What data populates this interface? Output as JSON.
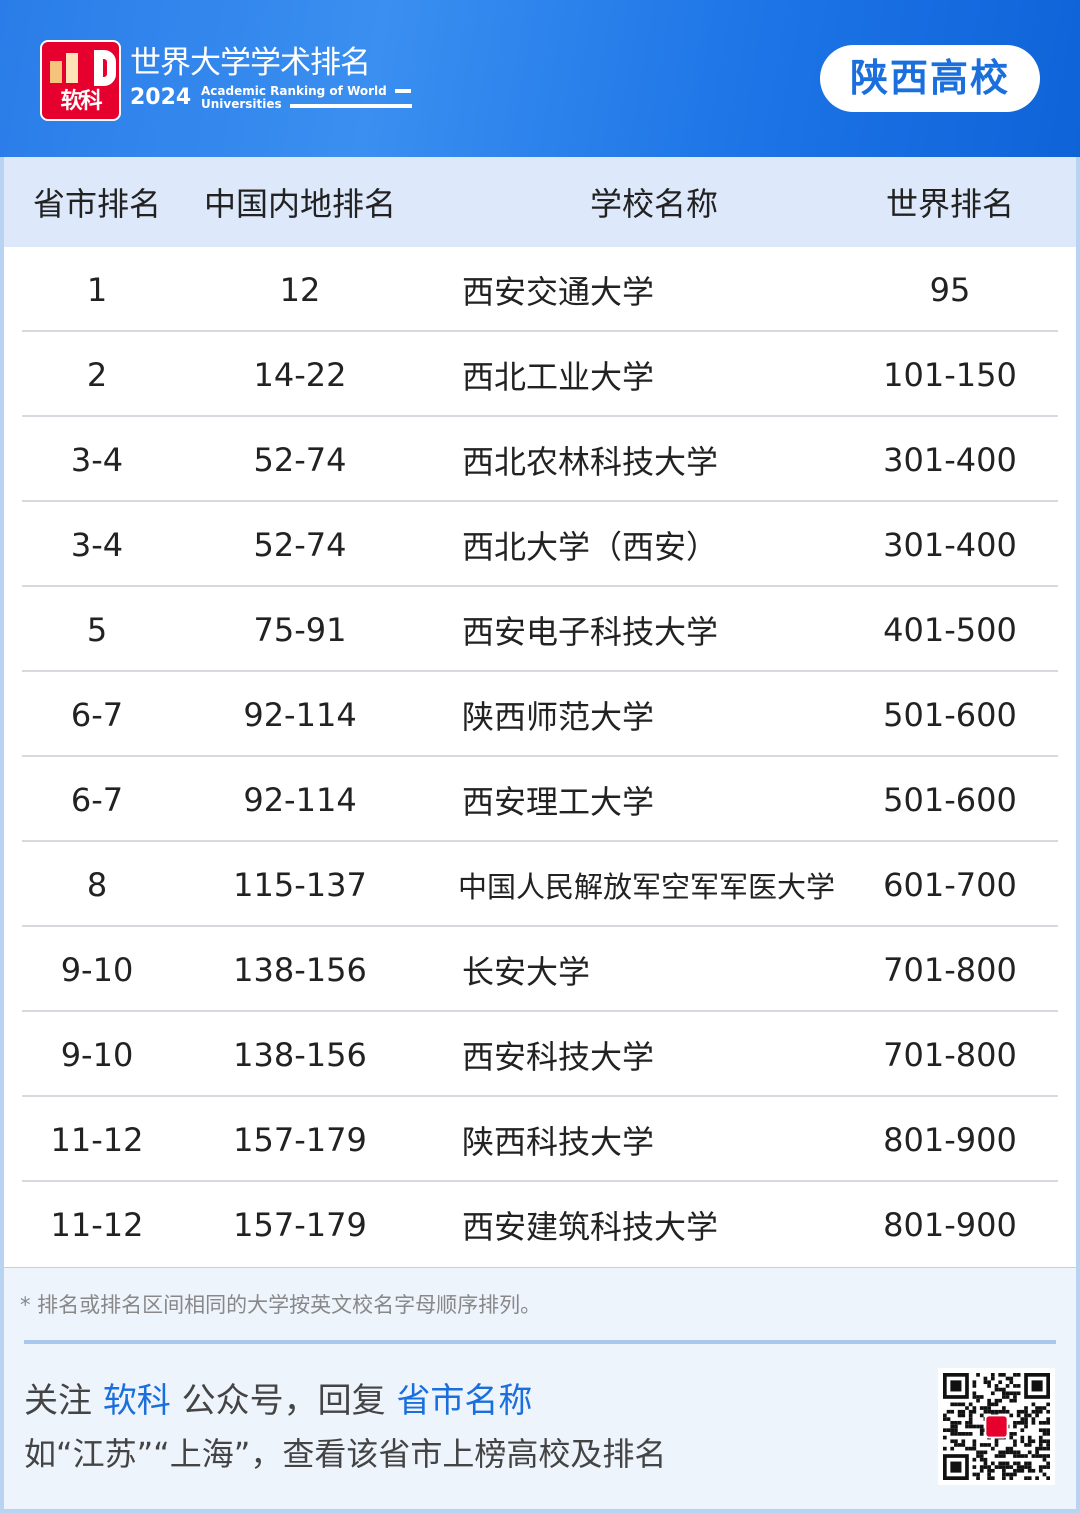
{
  "header": {
    "logo_text": "软科",
    "title": "世界大学学术排名",
    "year": "2024",
    "subtitle_line1": "Academic Ranking of World",
    "subtitle_line2": "Universities",
    "province_badge": "陕西高校"
  },
  "table": {
    "columns": [
      "省市排名",
      "中国内地排名",
      "学校名称",
      "世界排名"
    ],
    "rows": [
      [
        "1",
        "12",
        "西安交通大学",
        "95"
      ],
      [
        "2",
        "14-22",
        "西北工业大学",
        "101-150"
      ],
      [
        "3-4",
        "52-74",
        "西北农林科技大学",
        "301-400"
      ],
      [
        "3-4",
        "52-74",
        "西北大学（西安）",
        "301-400"
      ],
      [
        "5",
        "75-91",
        "西安电子科技大学",
        "401-500"
      ],
      [
        "6-7",
        "92-114",
        "陕西师范大学",
        "501-600"
      ],
      [
        "6-7",
        "92-114",
        "西安理工大学",
        "501-600"
      ],
      [
        "8",
        "115-137",
        "中国人民解放军空军军医大学",
        "601-700"
      ],
      [
        "9-10",
        "138-156",
        "长安大学",
        "701-800"
      ],
      [
        "9-10",
        "138-156",
        "西安科技大学",
        "701-800"
      ],
      [
        "11-12",
        "157-179",
        "陕西科技大学",
        "801-900"
      ],
      [
        "11-12",
        "157-179",
        "西安建筑科技大学",
        "801-900"
      ]
    ]
  },
  "footer": {
    "note": "* 排名或排名区间相同的大学按英文校名字母顺序排列。",
    "line1": [
      "关注 ",
      "软科",
      " 公众号，回复 ",
      "省市名称"
    ],
    "line2": "如“江苏”“上海”，查看该省市上榜高校及排名",
    "qr_icon": "qr-code-icon"
  },
  "colors": {
    "brand_blue": "#1a6fdc",
    "logo_red": "#e6002d"
  }
}
